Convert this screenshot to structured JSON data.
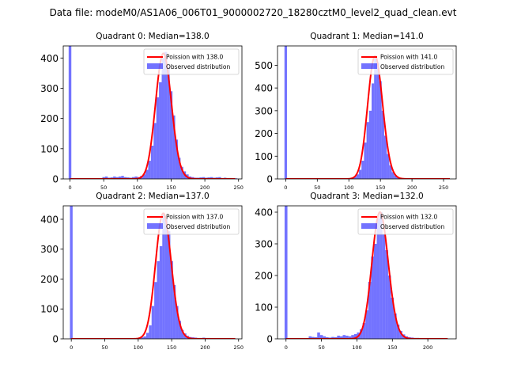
{
  "figure": {
    "title": "Data file: modeM0/AS1A06_006T01_9000002720_18280cztM0_level2_quad_clean.evt"
  },
  "colors": {
    "histogram": "#0000ff",
    "poisson": "#ff0000",
    "axis": "#000000",
    "background": "#ffffff"
  },
  "chart_data": [
    {
      "type": "bar",
      "title": "Quadrant 0: Median=138.0",
      "median": 138.0,
      "xlim": [
        -10,
        255
      ],
      "ylim": [
        0,
        440
      ],
      "xticks": [
        0,
        50,
        100,
        150,
        200,
        250
      ],
      "yticks": [
        0,
        100,
        200,
        300,
        400
      ],
      "bin_width": 4,
      "legend": [
        "Poission with 138.0",
        "Observed distribution"
      ],
      "legend_position": "top-right",
      "zero_bar": 440,
      "hist": [
        [
          48,
          6
        ],
        [
          52,
          8
        ],
        [
          56,
          4
        ],
        [
          60,
          5
        ],
        [
          64,
          8
        ],
        [
          68,
          6
        ],
        [
          72,
          8
        ],
        [
          76,
          10
        ],
        [
          80,
          6
        ],
        [
          84,
          5
        ],
        [
          88,
          4
        ],
        [
          92,
          6
        ],
        [
          96,
          8
        ],
        [
          100,
          6
        ],
        [
          104,
          10
        ],
        [
          108,
          15
        ],
        [
          112,
          30
        ],
        [
          116,
          60
        ],
        [
          120,
          110
        ],
        [
          124,
          185
        ],
        [
          128,
          270
        ],
        [
          132,
          320
        ],
        [
          136,
          400
        ],
        [
          140,
          420
        ],
        [
          144,
          370
        ],
        [
          148,
          290
        ],
        [
          152,
          210
        ],
        [
          156,
          130
        ],
        [
          160,
          70
        ],
        [
          164,
          40
        ],
        [
          168,
          25
        ],
        [
          172,
          15
        ],
        [
          176,
          8
        ],
        [
          180,
          6
        ],
        [
          184,
          4
        ],
        [
          188,
          4
        ],
        [
          192,
          5
        ],
        [
          196,
          6
        ],
        [
          200,
          4
        ],
        [
          204,
          5
        ],
        [
          208,
          6
        ],
        [
          212,
          4
        ],
        [
          216,
          5
        ],
        [
          220,
          6
        ],
        [
          224,
          3
        ],
        [
          228,
          4
        ],
        [
          232,
          3
        ],
        [
          236,
          3
        ],
        [
          240,
          2
        ],
        [
          244,
          2
        ]
      ],
      "curve": {
        "x_min": 0,
        "x_max": 245,
        "peak": 415
      }
    },
    {
      "type": "bar",
      "title": "Quadrant 1: Median=141.0",
      "median": 141.0,
      "xlim": [
        -13,
        270
      ],
      "ylim": [
        0,
        585
      ],
      "xticks": [
        0,
        50,
        100,
        150,
        200,
        250
      ],
      "yticks": [
        0,
        100,
        200,
        300,
        400,
        500
      ],
      "bin_width": 4,
      "legend": [
        "Poission with 141.0",
        "Observed distribution"
      ],
      "legend_position": "top-right",
      "zero_bar": 585,
      "hist": [
        [
          104,
          5
        ],
        [
          108,
          10
        ],
        [
          112,
          20
        ],
        [
          116,
          40
        ],
        [
          120,
          80
        ],
        [
          124,
          160
        ],
        [
          128,
          250
        ],
        [
          132,
          300
        ],
        [
          136,
          420
        ],
        [
          140,
          540
        ],
        [
          144,
          510
        ],
        [
          148,
          430
        ],
        [
          152,
          300
        ],
        [
          156,
          190
        ],
        [
          160,
          110
        ],
        [
          164,
          60
        ],
        [
          168,
          30
        ],
        [
          172,
          15
        ],
        [
          176,
          8
        ],
        [
          180,
          4
        ],
        [
          184,
          2
        ]
      ],
      "curve": {
        "x_min": 0,
        "x_max": 260,
        "peak": 540
      }
    },
    {
      "type": "bar",
      "title": "Quadrant 2: Median=137.0",
      "median": 137.0,
      "xlim": [
        -12,
        255
      ],
      "ylim": [
        0,
        445
      ],
      "xticks": [
        0,
        50,
        100,
        150,
        200,
        250
      ],
      "yticks": [
        0,
        100,
        200,
        300,
        400
      ],
      "bin_width": 4,
      "legend": [
        "Poission with 137.0",
        "Observed distribution"
      ],
      "legend_position": "top-right",
      "zero_bar": 445,
      "hist": [
        [
          104,
          5
        ],
        [
          108,
          8
        ],
        [
          112,
          20
        ],
        [
          116,
          45
        ],
        [
          120,
          110
        ],
        [
          124,
          190
        ],
        [
          128,
          260
        ],
        [
          132,
          310
        ],
        [
          136,
          420
        ],
        [
          140,
          400
        ],
        [
          144,
          360
        ],
        [
          148,
          260
        ],
        [
          152,
          180
        ],
        [
          156,
          110
        ],
        [
          160,
          60
        ],
        [
          164,
          30
        ],
        [
          168,
          18
        ],
        [
          172,
          10
        ],
        [
          176,
          6
        ],
        [
          180,
          5
        ],
        [
          184,
          4
        ],
        [
          188,
          3
        ],
        [
          192,
          3
        ],
        [
          196,
          4
        ],
        [
          200,
          3
        ],
        [
          204,
          3
        ],
        [
          208,
          2
        ]
      ],
      "curve": {
        "x_min": 0,
        "x_max": 245,
        "peak": 420
      }
    },
    {
      "type": "bar",
      "title": "Quadrant 3: Median=132.0",
      "median": 132.0,
      "xlim": [
        -12,
        240
      ],
      "ylim": [
        0,
        420
      ],
      "xticks": [
        0,
        50,
        100,
        150,
        200
      ],
      "yticks": [
        0,
        100,
        200,
        300,
        400
      ],
      "bin_width": 4,
      "legend": [
        "Poission with 132.0",
        "Observed distribution"
      ],
      "legend_position": "top-right",
      "zero_bar": 420,
      "hist": [
        [
          32,
          8
        ],
        [
          36,
          6
        ],
        [
          40,
          5
        ],
        [
          44,
          20
        ],
        [
          48,
          12
        ],
        [
          52,
          8
        ],
        [
          56,
          5
        ],
        [
          60,
          4
        ],
        [
          64,
          6
        ],
        [
          68,
          5
        ],
        [
          72,
          10
        ],
        [
          76,
          8
        ],
        [
          80,
          12
        ],
        [
          84,
          10
        ],
        [
          88,
          8
        ],
        [
          92,
          12
        ],
        [
          96,
          15
        ],
        [
          100,
          20
        ],
        [
          104,
          30
        ],
        [
          108,
          50
        ],
        [
          112,
          90
        ],
        [
          116,
          180
        ],
        [
          120,
          260
        ],
        [
          124,
          300
        ],
        [
          128,
          380
        ],
        [
          132,
          400
        ],
        [
          136,
          330
        ],
        [
          140,
          280
        ],
        [
          144,
          200
        ],
        [
          148,
          130
        ],
        [
          152,
          80
        ],
        [
          156,
          45
        ],
        [
          160,
          25
        ],
        [
          164,
          14
        ],
        [
          168,
          8
        ],
        [
          172,
          5
        ],
        [
          176,
          4
        ],
        [
          180,
          3
        ],
        [
          184,
          3
        ],
        [
          188,
          2
        ],
        [
          192,
          2
        ],
        [
          196,
          2
        ],
        [
          200,
          2
        ],
        [
          204,
          2
        ]
      ],
      "curve": {
        "x_min": 0,
        "x_max": 228,
        "peak": 400
      }
    }
  ]
}
